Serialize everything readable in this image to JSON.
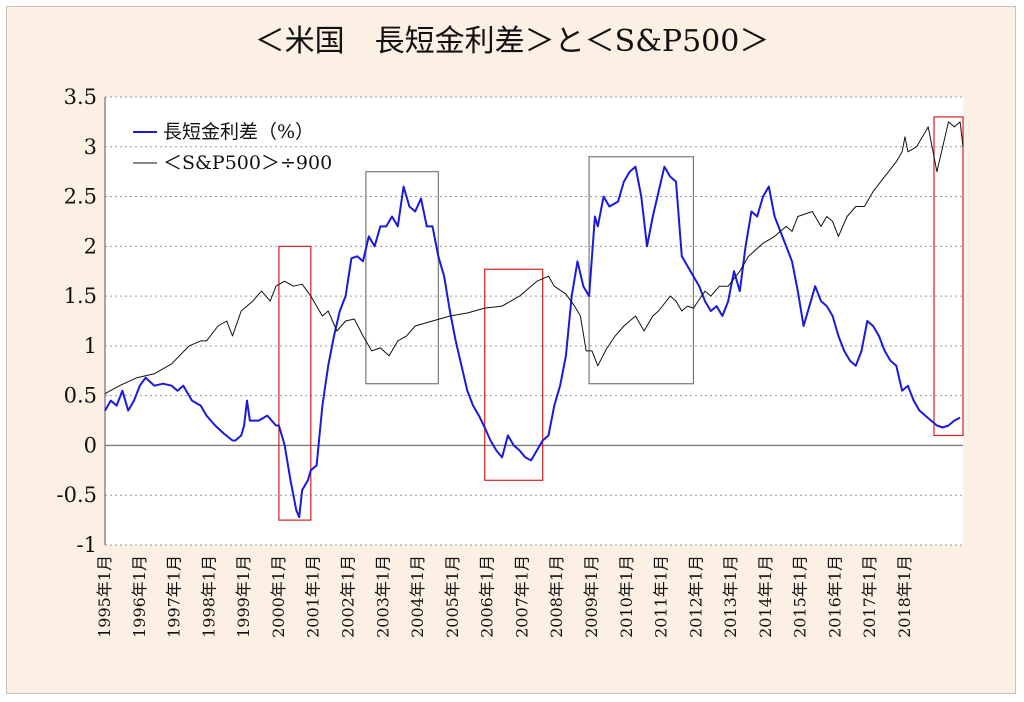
{
  "chart_data": {
    "type": "line",
    "title": "＜米国　長短金利差＞と＜S&P500＞",
    "xlabel": "",
    "ylabel": "",
    "ylim": [
      -1,
      3.5
    ],
    "yticks": [
      3.5,
      3,
      2.5,
      2,
      1.5,
      1,
      0.5,
      0,
      -0.5,
      -1
    ],
    "ytick_labels": [
      "3.5",
      "3",
      "2.5",
      "2",
      "1.5",
      "1",
      "0.5",
      "0",
      "-0.5",
      "-1"
    ],
    "xlim": [
      "1995-01",
      "2019-09"
    ],
    "x_tick_labels": [
      "1995年1月",
      "1996年1月",
      "1997年1月",
      "1998年1月",
      "1999年1月",
      "2000年1月",
      "2001年1月",
      "2002年1月",
      "2003年1月",
      "2004年1月",
      "2005年1月",
      "2006年1月",
      "2007年1月",
      "2008年1月",
      "2009年1月",
      "2010年1月",
      "2011年1月",
      "2012年1月",
      "2013年1月",
      "2014年1月",
      "2015年1月",
      "2016年1月",
      "2017年1月",
      "2018年1月"
    ],
    "grid": "horizontal-dashed",
    "legend": "top-left",
    "series": [
      {
        "name": "長短金利差（%）",
        "color": "#1a1adb",
        "points": [
          [
            "1995-01",
            0.35
          ],
          [
            "1995-03",
            0.45
          ],
          [
            "1995-05",
            0.4
          ],
          [
            "1995-07",
            0.55
          ],
          [
            "1995-09",
            0.35
          ],
          [
            "1995-11",
            0.45
          ],
          [
            "1996-01",
            0.6
          ],
          [
            "1996-03",
            0.68
          ],
          [
            "1996-06",
            0.6
          ],
          [
            "1996-09",
            0.62
          ],
          [
            "1996-12",
            0.6
          ],
          [
            "1997-02",
            0.55
          ],
          [
            "1997-04",
            0.6
          ],
          [
            "1997-07",
            0.45
          ],
          [
            "1997-10",
            0.4
          ],
          [
            "1997-12",
            0.3
          ],
          [
            "1998-03",
            0.2
          ],
          [
            "1998-06",
            0.12
          ],
          [
            "1998-09",
            0.05
          ],
          [
            "1998-10",
            0.05
          ],
          [
            "1998-12",
            0.1
          ],
          [
            "1999-01",
            0.2
          ],
          [
            "1999-02",
            0.45
          ],
          [
            "1999-03",
            0.25
          ],
          [
            "1999-06",
            0.25
          ],
          [
            "1999-09",
            0.3
          ],
          [
            "1999-12",
            0.2
          ],
          [
            "2000-01",
            0.2
          ],
          [
            "2000-03",
            0.0
          ],
          [
            "2000-05",
            -0.35
          ],
          [
            "2000-07",
            -0.65
          ],
          [
            "2000-08",
            -0.72
          ],
          [
            "2000-09",
            -0.45
          ],
          [
            "2000-11",
            -0.35
          ],
          [
            "2000-12",
            -0.25
          ],
          [
            "2001-02",
            -0.2
          ],
          [
            "2001-04",
            0.4
          ],
          [
            "2001-06",
            0.8
          ],
          [
            "2001-08",
            1.1
          ],
          [
            "2001-10",
            1.35
          ],
          [
            "2001-12",
            1.5
          ],
          [
            "2002-02",
            1.88
          ],
          [
            "2002-04",
            1.9
          ],
          [
            "2002-06",
            1.85
          ],
          [
            "2002-08",
            2.1
          ],
          [
            "2002-10",
            2.0
          ],
          [
            "2002-12",
            2.2
          ],
          [
            "2003-02",
            2.2
          ],
          [
            "2003-04",
            2.3
          ],
          [
            "2003-06",
            2.2
          ],
          [
            "2003-08",
            2.6
          ],
          [
            "2003-10",
            2.4
          ],
          [
            "2003-12",
            2.35
          ],
          [
            "2004-02",
            2.48
          ],
          [
            "2004-04",
            2.2
          ],
          [
            "2004-06",
            2.2
          ],
          [
            "2004-08",
            1.9
          ],
          [
            "2004-10",
            1.7
          ],
          [
            "2004-12",
            1.35
          ],
          [
            "2005-02",
            1.05
          ],
          [
            "2005-04",
            0.8
          ],
          [
            "2005-06",
            0.55
          ],
          [
            "2005-08",
            0.4
          ],
          [
            "2005-10",
            0.3
          ],
          [
            "2005-12",
            0.18
          ],
          [
            "2006-02",
            0.05
          ],
          [
            "2006-04",
            -0.05
          ],
          [
            "2006-06",
            -0.12
          ],
          [
            "2006-08",
            0.1
          ],
          [
            "2006-10",
            0.0
          ],
          [
            "2006-12",
            -0.05
          ],
          [
            "2007-02",
            -0.12
          ],
          [
            "2007-04",
            -0.15
          ],
          [
            "2007-06",
            -0.05
          ],
          [
            "2007-08",
            0.05
          ],
          [
            "2007-10",
            0.1
          ],
          [
            "2007-12",
            0.4
          ],
          [
            "2008-02",
            0.6
          ],
          [
            "2008-04",
            0.9
          ],
          [
            "2008-06",
            1.5
          ],
          [
            "2008-08",
            1.85
          ],
          [
            "2008-10",
            1.6
          ],
          [
            "2008-12",
            1.5
          ],
          [
            "2009-02",
            2.3
          ],
          [
            "2009-03",
            2.2
          ],
          [
            "2009-05",
            2.5
          ],
          [
            "2009-07",
            2.4
          ],
          [
            "2009-10",
            2.45
          ],
          [
            "2009-12",
            2.65
          ],
          [
            "2010-02",
            2.75
          ],
          [
            "2010-04",
            2.8
          ],
          [
            "2010-06",
            2.5
          ],
          [
            "2010-08",
            2.0
          ],
          [
            "2010-10",
            2.3
          ],
          [
            "2010-12",
            2.55
          ],
          [
            "2011-02",
            2.8
          ],
          [
            "2011-04",
            2.7
          ],
          [
            "2011-06",
            2.65
          ],
          [
            "2011-08",
            1.9
          ],
          [
            "2011-10",
            1.8
          ],
          [
            "2011-12",
            1.7
          ],
          [
            "2012-02",
            1.6
          ],
          [
            "2012-04",
            1.45
          ],
          [
            "2012-06",
            1.35
          ],
          [
            "2012-08",
            1.4
          ],
          [
            "2012-10",
            1.3
          ],
          [
            "2012-12",
            1.45
          ],
          [
            "2013-02",
            1.75
          ],
          [
            "2013-04",
            1.55
          ],
          [
            "2013-06",
            2.0
          ],
          [
            "2013-08",
            2.35
          ],
          [
            "2013-10",
            2.3
          ],
          [
            "2013-12",
            2.5
          ],
          [
            "2014-02",
            2.6
          ],
          [
            "2014-04",
            2.3
          ],
          [
            "2014-06",
            2.15
          ],
          [
            "2014-08",
            2.0
          ],
          [
            "2014-10",
            1.85
          ],
          [
            "2014-12",
            1.55
          ],
          [
            "2015-02",
            1.2
          ],
          [
            "2015-04",
            1.4
          ],
          [
            "2015-06",
            1.6
          ],
          [
            "2015-08",
            1.45
          ],
          [
            "2015-10",
            1.4
          ],
          [
            "2015-12",
            1.3
          ],
          [
            "2016-02",
            1.1
          ],
          [
            "2016-04",
            0.95
          ],
          [
            "2016-06",
            0.85
          ],
          [
            "2016-08",
            0.8
          ],
          [
            "2016-10",
            0.95
          ],
          [
            "2016-12",
            1.25
          ],
          [
            "2017-02",
            1.2
          ],
          [
            "2017-04",
            1.1
          ],
          [
            "2017-06",
            0.95
          ],
          [
            "2017-08",
            0.85
          ],
          [
            "2017-10",
            0.8
          ],
          [
            "2017-12",
            0.55
          ],
          [
            "2018-02",
            0.6
          ],
          [
            "2018-04",
            0.45
          ],
          [
            "2018-06",
            0.35
          ],
          [
            "2018-08",
            0.3
          ],
          [
            "2018-10",
            0.25
          ],
          [
            "2018-12",
            0.2
          ],
          [
            "2019-02",
            0.18
          ],
          [
            "2019-04",
            0.2
          ],
          [
            "2019-06",
            0.25
          ],
          [
            "2019-08",
            0.28
          ]
        ]
      },
      {
        "name": "＜S&P500＞÷900",
        "color": "#111111",
        "points": [
          [
            "1995-01",
            0.52
          ],
          [
            "1995-06",
            0.6
          ],
          [
            "1995-12",
            0.68
          ],
          [
            "1996-06",
            0.72
          ],
          [
            "1996-12",
            0.82
          ],
          [
            "1997-06",
            1.0
          ],
          [
            "1997-10",
            1.05
          ],
          [
            "1997-12",
            1.05
          ],
          [
            "1998-04",
            1.2
          ],
          [
            "1998-07",
            1.25
          ],
          [
            "1998-09",
            1.1
          ],
          [
            "1998-12",
            1.35
          ],
          [
            "1999-04",
            1.45
          ],
          [
            "1999-07",
            1.55
          ],
          [
            "1999-10",
            1.45
          ],
          [
            "1999-12",
            1.6
          ],
          [
            "2000-03",
            1.65
          ],
          [
            "2000-06",
            1.6
          ],
          [
            "2000-09",
            1.62
          ],
          [
            "2000-12",
            1.5
          ],
          [
            "2001-02",
            1.4
          ],
          [
            "2001-04",
            1.3
          ],
          [
            "2001-06",
            1.35
          ],
          [
            "2001-09",
            1.15
          ],
          [
            "2001-12",
            1.25
          ],
          [
            "2002-03",
            1.27
          ],
          [
            "2002-06",
            1.1
          ],
          [
            "2002-09",
            0.95
          ],
          [
            "2002-12",
            0.98
          ],
          [
            "2003-03",
            0.9
          ],
          [
            "2003-06",
            1.05
          ],
          [
            "2003-09",
            1.1
          ],
          [
            "2003-12",
            1.2
          ],
          [
            "2004-06",
            1.25
          ],
          [
            "2004-12",
            1.3
          ],
          [
            "2005-06",
            1.33
          ],
          [
            "2005-12",
            1.38
          ],
          [
            "2006-06",
            1.4
          ],
          [
            "2006-12",
            1.5
          ],
          [
            "2007-06",
            1.65
          ],
          [
            "2007-10",
            1.7
          ],
          [
            "2007-12",
            1.6
          ],
          [
            "2008-04",
            1.52
          ],
          [
            "2008-07",
            1.4
          ],
          [
            "2008-09",
            1.3
          ],
          [
            "2008-11",
            0.95
          ],
          [
            "2009-01",
            0.95
          ],
          [
            "2009-03",
            0.8
          ],
          [
            "2009-06",
            0.97
          ],
          [
            "2009-09",
            1.1
          ],
          [
            "2009-12",
            1.2
          ],
          [
            "2010-04",
            1.3
          ],
          [
            "2010-07",
            1.15
          ],
          [
            "2010-10",
            1.3
          ],
          [
            "2010-12",
            1.35
          ],
          [
            "2011-04",
            1.5
          ],
          [
            "2011-06",
            1.45
          ],
          [
            "2011-08",
            1.35
          ],
          [
            "2011-10",
            1.4
          ],
          [
            "2011-12",
            1.38
          ],
          [
            "2012-04",
            1.55
          ],
          [
            "2012-06",
            1.5
          ],
          [
            "2012-09",
            1.6
          ],
          [
            "2012-12",
            1.6
          ],
          [
            "2013-04",
            1.75
          ],
          [
            "2013-07",
            1.9
          ],
          [
            "2013-12",
            2.03
          ],
          [
            "2014-04",
            2.1
          ],
          [
            "2014-08",
            2.2
          ],
          [
            "2014-10",
            2.15
          ],
          [
            "2014-12",
            2.3
          ],
          [
            "2015-05",
            2.35
          ],
          [
            "2015-08",
            2.2
          ],
          [
            "2015-10",
            2.3
          ],
          [
            "2015-12",
            2.25
          ],
          [
            "2016-02",
            2.1
          ],
          [
            "2016-05",
            2.3
          ],
          [
            "2016-08",
            2.4
          ],
          [
            "2016-11",
            2.4
          ],
          [
            "2017-02",
            2.55
          ],
          [
            "2017-06",
            2.7
          ],
          [
            "2017-10",
            2.85
          ],
          [
            "2017-12",
            2.95
          ],
          [
            "2018-01",
            3.1
          ],
          [
            "2018-02",
            2.95
          ],
          [
            "2018-05",
            3.0
          ],
          [
            "2018-09",
            3.2
          ],
          [
            "2018-12",
            2.75
          ],
          [
            "2019-02",
            3.0
          ],
          [
            "2019-04",
            3.25
          ],
          [
            "2019-06",
            3.2
          ],
          [
            "2019-08",
            3.25
          ],
          [
            "2019-09",
            3.0
          ]
        ]
      }
    ],
    "highlight_boxes": [
      {
        "color": "#d42020",
        "x_start": "2000-01",
        "x_end": "2000-12",
        "y_min": -0.75,
        "y_max": 2.0
      },
      {
        "color": "#7a7a7a",
        "x_start": "2002-07",
        "x_end": "2004-08",
        "y_min": 0.62,
        "y_max": 2.75
      },
      {
        "color": "#d42020",
        "x_start": "2005-12",
        "x_end": "2007-08",
        "y_min": -0.35,
        "y_max": 1.77
      },
      {
        "color": "#7a7a7a",
        "x_start": "2008-12",
        "x_end": "2011-12",
        "y_min": 0.62,
        "y_max": 2.9
      },
      {
        "color": "#d42020",
        "x_start": "2018-11",
        "x_end": "2019-09",
        "y_min": 0.1,
        "y_max": 3.3
      }
    ]
  }
}
